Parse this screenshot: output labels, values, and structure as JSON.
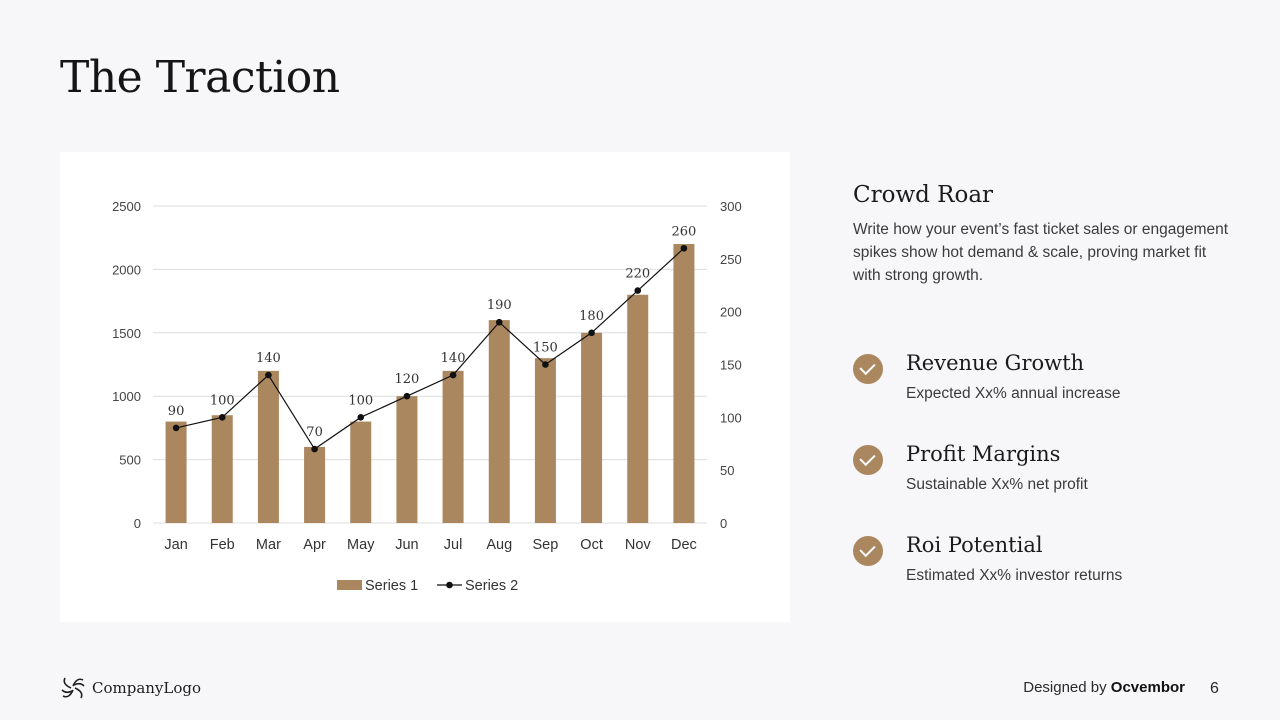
{
  "page": {
    "title": "The Traction",
    "page_number": "6"
  },
  "chart_data": {
    "type": "bar",
    "categories": [
      "Jan",
      "Feb",
      "Mar",
      "Apr",
      "May",
      "Jun",
      "Jul",
      "Aug",
      "Sep",
      "Oct",
      "Nov",
      "Dec"
    ],
    "series": [
      {
        "name": "Series 1",
        "type": "bar",
        "axis": "left",
        "values": [
          800,
          850,
          1200,
          600,
          800,
          1000,
          1200,
          1600,
          1300,
          1500,
          1800,
          2200
        ]
      },
      {
        "name": "Series 2",
        "type": "line",
        "axis": "right",
        "values": [
          90,
          100,
          140,
          70,
          100,
          120,
          140,
          190,
          150,
          180,
          220,
          260
        ],
        "data_labels": true
      }
    ],
    "ylim": [
      0,
      2500
    ],
    "y_ticks": [
      "0",
      "500",
      "1000",
      "1500",
      "2000",
      "2500"
    ],
    "y2lim": [
      0,
      300
    ],
    "y2_ticks": [
      "0",
      "50",
      "100",
      "150",
      "200",
      "250",
      "300"
    ],
    "grid": true,
    "legend": "bottom",
    "colors": {
      "bar": "#ab8760",
      "line": "#111111",
      "grid": "#dddddd"
    }
  },
  "sidebar": {
    "heading": "Crowd Roar",
    "body": "Write how your event’s fast ticket sales or engagement spikes show hot demand & scale, proving market fit with strong growth."
  },
  "features": [
    {
      "title": "Revenue Growth",
      "desc": "Expected Xx% annual increase",
      "icon": "check-icon"
    },
    {
      "title": "Profit Margins",
      "desc": "Sustainable Xx% net profit",
      "icon": "check-icon"
    },
    {
      "title": "Roi Potential",
      "desc": "Estimated Xx% investor returns",
      "icon": "check-icon"
    }
  ],
  "footer": {
    "logo_text": "CompanyLogo",
    "credit_prefix": "Designed by",
    "credit_brand": "Ocvembor"
  }
}
